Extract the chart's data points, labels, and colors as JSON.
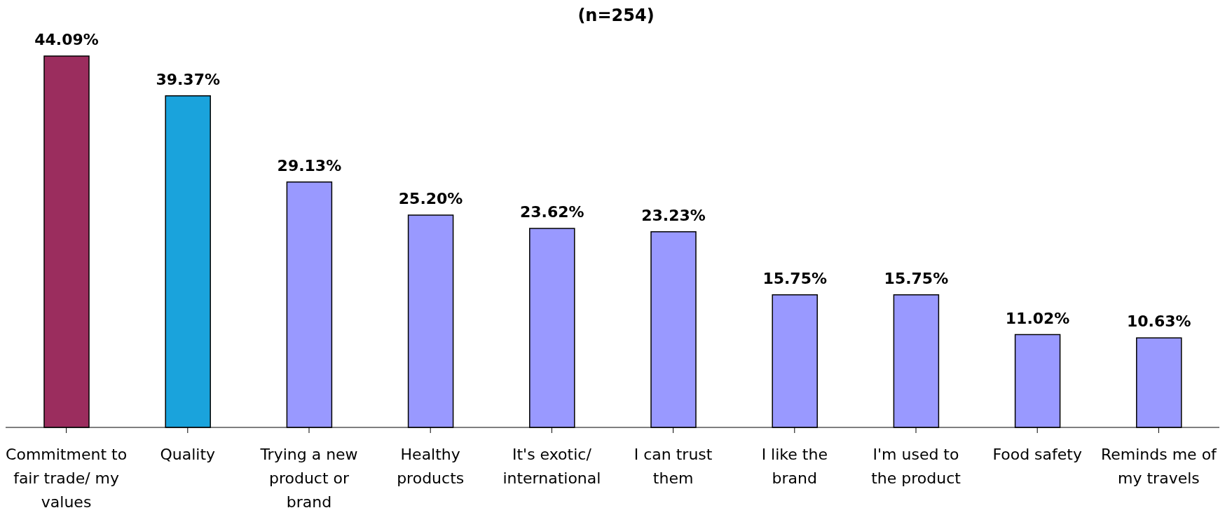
{
  "chart_data": {
    "type": "bar",
    "title": "(n=254)",
    "categories": [
      "Commitment to fair trade/ my values",
      "Quality",
      "Trying a new product or brand",
      "Healthy products",
      "It's exotic/ international",
      "I can trust them",
      "I like the brand",
      "I'm used to the product",
      "Food safety",
      "Reminds me of my travels"
    ],
    "values": [
      44.09,
      39.37,
      29.13,
      25.2,
      23.62,
      23.23,
      15.75,
      15.75,
      11.02,
      10.63
    ],
    "colors": [
      "#9b2d5e",
      "#1aa3dc",
      "#9999ff",
      "#9999ff",
      "#9999ff",
      "#9999ff",
      "#9999ff",
      "#9999ff",
      "#9999ff",
      "#9999ff"
    ],
    "value_labels": [
      "44.09%",
      "39.37%",
      "29.13%",
      "25.20%",
      "23.62%",
      "23.23%",
      "15.75%",
      "15.75%",
      "11.02%",
      "10.63%"
    ],
    "grid": false,
    "legend": false
  }
}
